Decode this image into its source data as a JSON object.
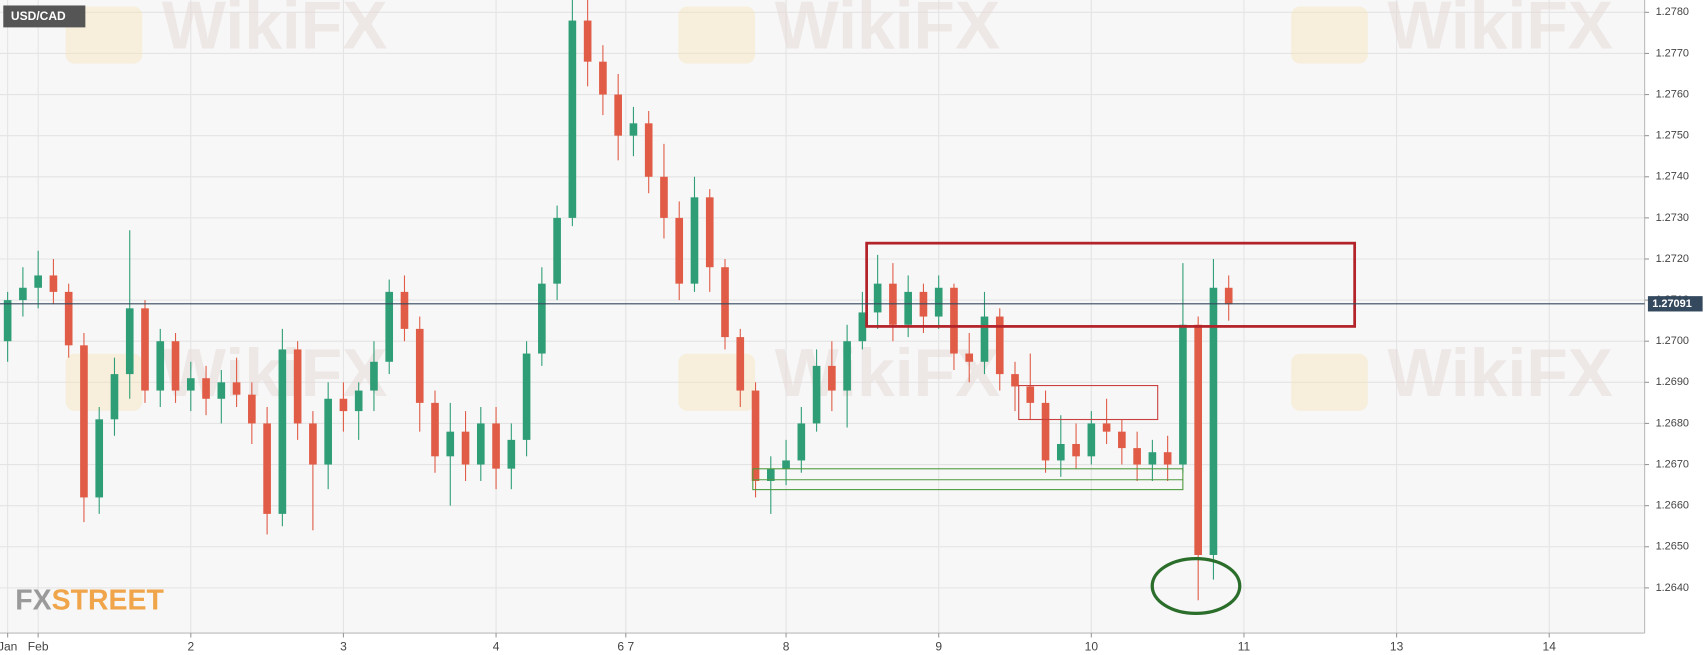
{
  "chart_data": {
    "type": "candlestick",
    "title": "USD/CAD",
    "watermark": "WikiFX",
    "logo": {
      "prefix": "FX",
      "suffix": "STREET"
    },
    "up_color": "#2f9e76",
    "down_color": "#e05c46",
    "last_price": 1.27091,
    "last_price_color": "#34495e",
    "grid": true,
    "ylim": [
      1.2629,
      1.2783
    ],
    "yticks": [
      {
        "value": 1.264,
        "label": "1.2640"
      },
      {
        "value": 1.265,
        "label": "1.2650"
      },
      {
        "value": 1.266,
        "label": "1.2660"
      },
      {
        "value": 1.267,
        "label": "1.2670"
      },
      {
        "value": 1.268,
        "label": "1.2680"
      },
      {
        "value": 1.269,
        "label": "1.2690"
      },
      {
        "value": 1.27,
        "label": "1.2700"
      },
      {
        "value": 1.271,
        "label": "1.2710"
      },
      {
        "value": 1.272,
        "label": "1.2720"
      },
      {
        "value": 1.273,
        "label": "1.2730"
      },
      {
        "value": 1.274,
        "label": "1.2740"
      },
      {
        "value": 1.275,
        "label": "1.2750"
      },
      {
        "value": 1.276,
        "label": "1.2760"
      },
      {
        "value": 1.277,
        "label": "1.2770"
      },
      {
        "value": 1.278,
        "label": "1.2780"
      }
    ],
    "xlim": [
      -0.5,
      107.25
    ],
    "xticks": [
      {
        "value": 0,
        "label": "Jan"
      },
      {
        "value": 2,
        "label": "Feb"
      },
      {
        "value": 12,
        "label": "2"
      },
      {
        "value": 22,
        "label": "3"
      },
      {
        "value": 32,
        "label": "4"
      },
      {
        "value": 40.5,
        "label": "6 7"
      },
      {
        "value": 51,
        "label": "8"
      },
      {
        "value": 61,
        "label": "9"
      },
      {
        "value": 71,
        "label": "10"
      },
      {
        "value": 81,
        "label": "11"
      },
      {
        "value": 91,
        "label": "13"
      },
      {
        "value": 101,
        "label": "14"
      }
    ],
    "open": [
      1.27,
      1.271,
      1.2713,
      1.2716,
      1.2712,
      1.2699,
      1.2662,
      1.2681,
      1.2692,
      1.2708,
      1.2688,
      1.27,
      1.2688,
      1.2691,
      1.2686,
      1.269,
      1.2687,
      1.268,
      1.2658,
      1.2698,
      1.268,
      1.267,
      1.2686,
      1.2683,
      1.2688,
      1.2695,
      1.2712,
      1.2703,
      1.2685,
      1.2672,
      1.2678,
      1.267,
      1.268,
      1.2669,
      1.2676,
      1.2697,
      1.2714,
      1.273,
      1.2778,
      1.2768,
      1.276,
      1.275,
      1.2753,
      1.274,
      1.273,
      1.2714,
      1.2735,
      1.2718,
      1.2701,
      1.2688,
      1.2666,
      1.2669,
      1.2671,
      1.268,
      1.2694,
      1.2688,
      1.27,
      1.2707,
      1.2714,
      1.2704,
      1.2712,
      1.2706,
      1.2713,
      1.2697,
      1.2695,
      1.2706,
      1.2692,
      1.2689,
      1.2685,
      1.2671,
      1.2675,
      1.2672,
      1.268,
      1.2678,
      1.2674,
      1.267,
      1.2673,
      1.267,
      1.2704,
      1.2648,
      1.2713
    ],
    "high": [
      1.2712,
      1.2718,
      1.2722,
      1.272,
      1.2714,
      1.2702,
      1.2684,
      1.2696,
      1.2727,
      1.271,
      1.2703,
      1.2702,
      1.2695,
      1.2694,
      1.2693,
      1.2696,
      1.269,
      1.2684,
      1.2703,
      1.27,
      1.2683,
      1.269,
      1.269,
      1.269,
      1.27,
      1.2715,
      1.2716,
      1.2706,
      1.2688,
      1.2685,
      1.2683,
      1.2684,
      1.2684,
      1.268,
      1.27,
      1.2718,
      1.2733,
      1.2785,
      1.2785,
      1.2772,
      1.2765,
      1.2757,
      1.2756,
      1.2748,
      1.2734,
      1.274,
      1.2737,
      1.272,
      1.2703,
      1.269,
      1.2672,
      1.2676,
      1.2684,
      1.2698,
      1.27,
      1.2704,
      1.2712,
      1.2721,
      1.2719,
      1.2716,
      1.2714,
      1.2716,
      1.2714,
      1.2702,
      1.2712,
      1.2708,
      1.2695,
      1.2697,
      1.2688,
      1.2682,
      1.268,
      1.2683,
      1.2686,
      1.2681,
      1.2678,
      1.2676,
      1.2677,
      1.2719,
      1.2706,
      1.272,
      1.2716
    ],
    "low": [
      1.2695,
      1.2706,
      1.2708,
      1.2709,
      1.2696,
      1.2656,
      1.2658,
      1.2677,
      1.2686,
      1.2685,
      1.2684,
      1.2685,
      1.2683,
      1.2682,
      1.268,
      1.2684,
      1.2675,
      1.2653,
      1.2655,
      1.2676,
      1.2654,
      1.2664,
      1.2678,
      1.2676,
      1.2683,
      1.2692,
      1.27,
      1.2678,
      1.2668,
      1.266,
      1.2666,
      1.2666,
      1.2664,
      1.2664,
      1.2672,
      1.2694,
      1.271,
      1.2728,
      1.2762,
      1.2755,
      1.2744,
      1.2745,
      1.2736,
      1.2725,
      1.271,
      1.2712,
      1.2712,
      1.2698,
      1.2684,
      1.2662,
      1.2658,
      1.2665,
      1.2668,
      1.2678,
      1.2683,
      1.2679,
      1.2698,
      1.2703,
      1.27,
      1.2701,
      1.2702,
      1.2703,
      1.2693,
      1.269,
      1.2692,
      1.2688,
      1.2683,
      1.2681,
      1.2668,
      1.2667,
      1.2669,
      1.267,
      1.2675,
      1.267,
      1.2666,
      1.2666,
      1.2666,
      1.2668,
      1.2637,
      1.2642,
      1.2705
    ],
    "close": [
      1.271,
      1.2713,
      1.2716,
      1.2712,
      1.2699,
      1.2662,
      1.2681,
      1.2692,
      1.2708,
      1.2688,
      1.27,
      1.2688,
      1.2691,
      1.2686,
      1.269,
      1.2687,
      1.268,
      1.2658,
      1.2698,
      1.268,
      1.267,
      1.2686,
      1.2683,
      1.2688,
      1.2695,
      1.2712,
      1.2703,
      1.2685,
      1.2672,
      1.2678,
      1.267,
      1.268,
      1.2669,
      1.2676,
      1.2697,
      1.2714,
      1.273,
      1.2778,
      1.2768,
      1.276,
      1.275,
      1.2753,
      1.274,
      1.273,
      1.2714,
      1.2735,
      1.2718,
      1.2701,
      1.2688,
      1.2666,
      1.2669,
      1.2671,
      1.268,
      1.2694,
      1.2688,
      1.27,
      1.2707,
      1.2714,
      1.2704,
      1.2712,
      1.2706,
      1.2713,
      1.2697,
      1.2695,
      1.2706,
      1.2692,
      1.2689,
      1.2685,
      1.2671,
      1.2675,
      1.2672,
      1.268,
      1.2678,
      1.2674,
      1.267,
      1.2673,
      1.267,
      1.2704,
      1.2648,
      1.2713,
      1.2709
    ]
  }
}
